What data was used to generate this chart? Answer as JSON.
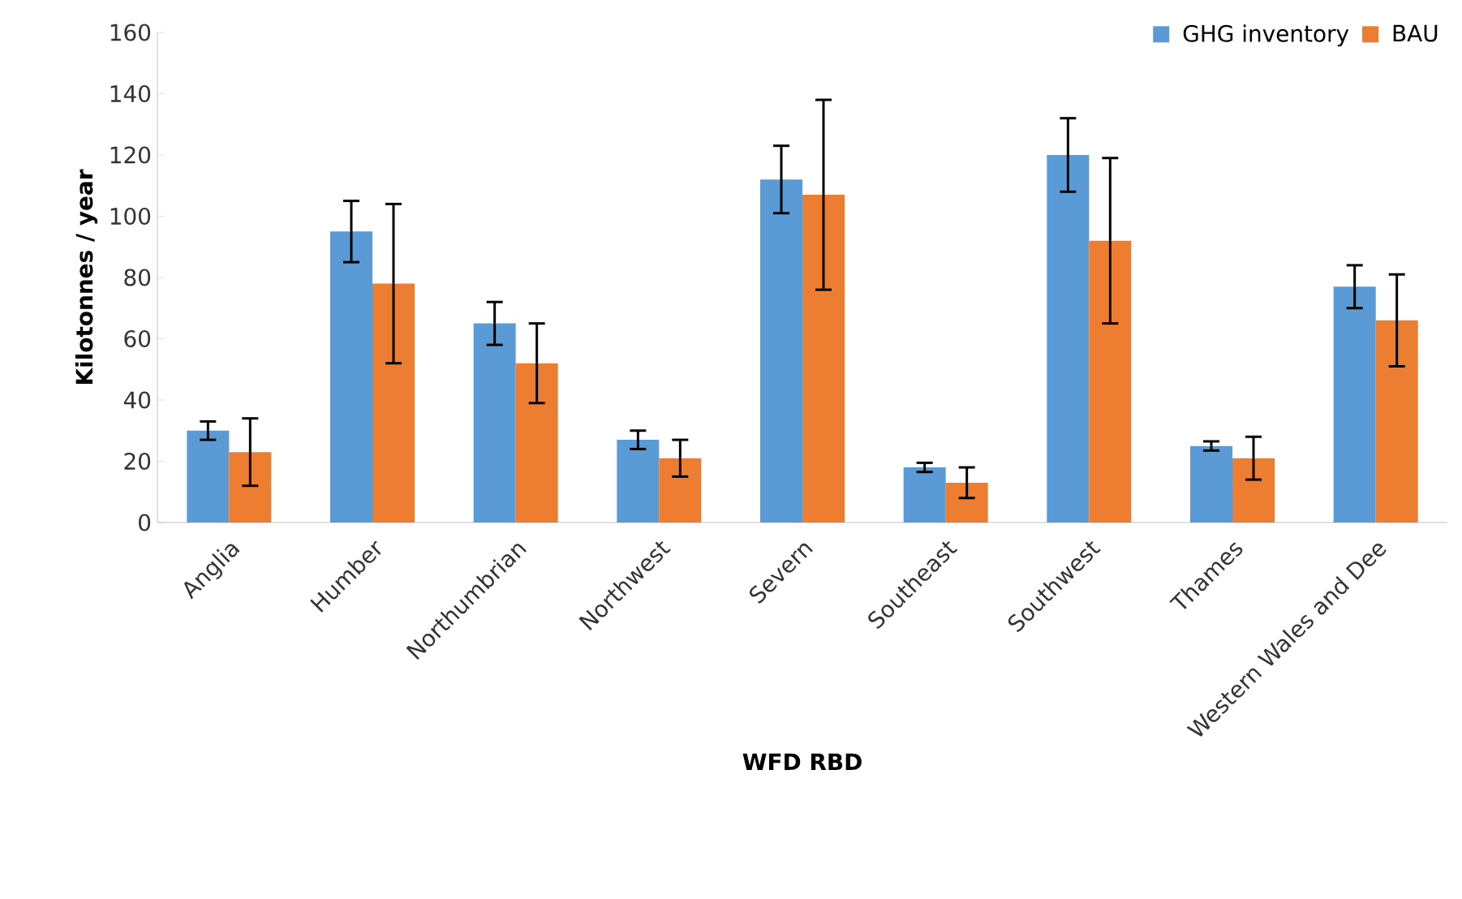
{
  "chart_data": {
    "type": "bar",
    "xlabel": "WFD RBD",
    "ylabel": "Kilotonnes / year",
    "categories": [
      "Anglia",
      "Humber",
      "Northumbrian",
      "Northwest",
      "Severn",
      "Southeast",
      "Southwest",
      "Thames",
      "Western Wales and Dee"
    ],
    "series": [
      {
        "name": "GHG inventory",
        "color": "#5b9bd5",
        "values": [
          30,
          95,
          65,
          27,
          112,
          18,
          120,
          25,
          77
        ],
        "errors": [
          3,
          10,
          7,
          3,
          11,
          1.5,
          12,
          1.5,
          7
        ]
      },
      {
        "name": "BAU",
        "color": "#ed7d31",
        "values": [
          23,
          78,
          52,
          21,
          107,
          13,
          92,
          21,
          66
        ],
        "errors": [
          11,
          26,
          13,
          6,
          31,
          5,
          27,
          7,
          15
        ]
      }
    ],
    "ylim": [
      0,
      160
    ],
    "yticks": [
      0,
      20,
      40,
      60,
      80,
      100,
      120,
      140,
      160
    ],
    "grid": false,
    "legend": "top right"
  }
}
